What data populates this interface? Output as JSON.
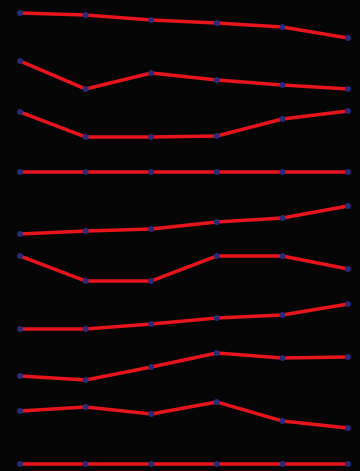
{
  "colors": {
    "background": "#050505",
    "line": "#e8141c",
    "marker": "#2a2a7a"
  },
  "chart_data": {
    "type": "line",
    "title": "",
    "xlabel": "",
    "ylabel": "",
    "grid": false,
    "legend": "none",
    "x": [
      0,
      1,
      2,
      3,
      4,
      5
    ],
    "xlim": [
      0,
      5
    ],
    "ylim": [
      0,
      471
    ],
    "y_axis": "inverted",
    "series": [
      {
        "values": [
          13,
          15,
          20,
          23,
          27,
          38
        ]
      },
      {
        "values": [
          61,
          89,
          73,
          80,
          85,
          89
        ]
      },
      {
        "values": [
          112,
          137,
          137,
          136,
          119,
          111
        ]
      },
      {
        "values": [
          172,
          172,
          172,
          172,
          172,
          172
        ]
      },
      {
        "values": [
          234,
          231,
          229,
          222,
          218,
          206
        ]
      },
      {
        "values": [
          256,
          281,
          281,
          256,
          256,
          269
        ]
      },
      {
        "values": [
          329,
          329,
          324,
          318,
          315,
          304
        ]
      },
      {
        "values": [
          376,
          380,
          367,
          353,
          358,
          357
        ]
      },
      {
        "values": [
          411,
          407,
          414,
          402,
          421,
          428
        ]
      },
      {
        "values": [
          464,
          464,
          464,
          464,
          464,
          464
        ]
      }
    ]
  }
}
